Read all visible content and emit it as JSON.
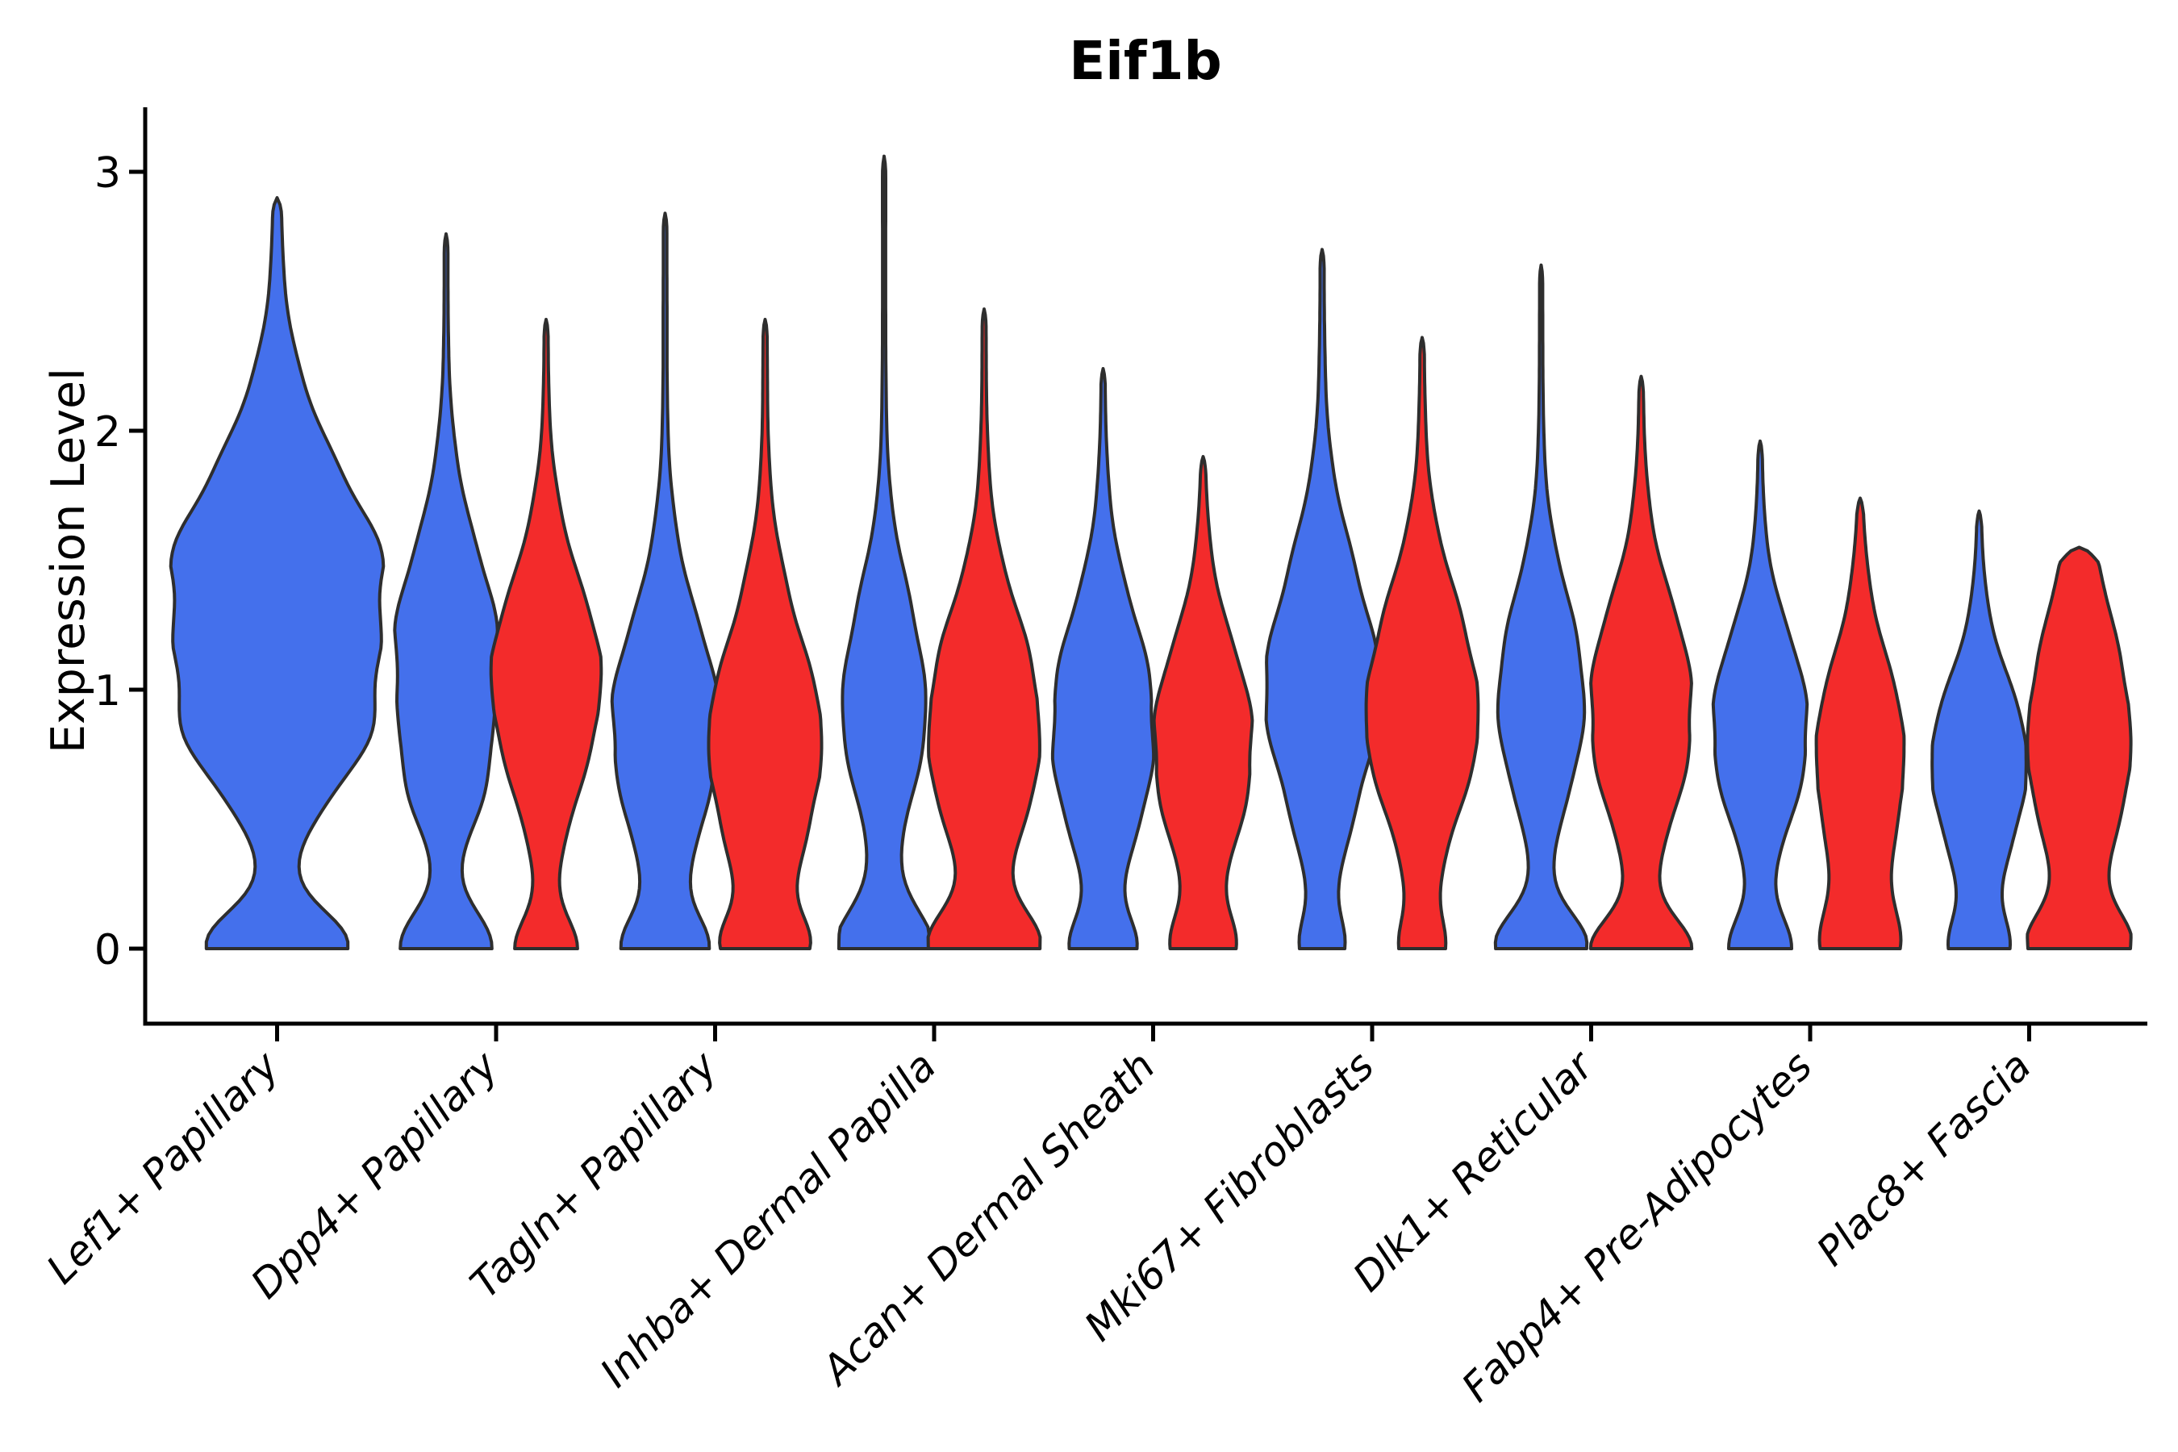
{
  "figure": {
    "background": "#FFFFFF"
  },
  "chart_data": {
    "type": "violin",
    "title": "Eif1b",
    "ylabel": "Expression Level",
    "xlabel": "",
    "yticks": [
      0,
      1,
      2,
      3
    ],
    "ylim": [
      -0.29,
      3.24
    ],
    "grid": false,
    "legend": "none",
    "colors": {
      "blue": "#4470EC",
      "red": "#F32B2B",
      "outline": "#2E2E2E",
      "axis": "#000000",
      "text": "#000000"
    },
    "categories": [
      "Lef1+ Papillary",
      "Dpp4+ Papillary",
      "Tagln+ Papillary",
      "Inhba+ Dermal Papilla",
      "Acan+ Dermal Sheath",
      "Mki67+ Fibroblasts",
      "Dlk1+ Reticular",
      "Fabp4+ Pre-Adipocytes",
      "Plac8+ Fascia"
    ],
    "violins": [
      {
        "category": "Lef1+ Papillary",
        "slug": "lef1-papillary",
        "series": [
          {
            "group": "blue",
            "max": 2.9,
            "halfwidth": 130,
            "offset": 0,
            "components": [
              [
                0,
                0.14,
                0.62
              ],
              [
                0.75,
                0.2,
                0.3
              ],
              [
                1.35,
                0.48,
                1.0
              ]
            ]
          }
        ]
      },
      {
        "category": "Dpp4+ Papillary",
        "slug": "dpp4-papillary",
        "series": [
          {
            "group": "blue",
            "max": 2.76,
            "halfwidth": 62,
            "offset": -62,
            "components": [
              [
                0,
                0.14,
                0.85
              ],
              [
                0.6,
                0.18,
                0.25
              ],
              [
                1.12,
                0.42,
                1.0
              ]
            ]
          },
          {
            "group": "red",
            "max": 2.43,
            "halfwidth": 66,
            "offset": 62,
            "components": [
              [
                0,
                0.12,
                0.52
              ],
              [
                1.02,
                0.4,
                1.0
              ]
            ]
          }
        ]
      },
      {
        "category": "Tagln+ Papillary",
        "slug": "tagln-papillary",
        "series": [
          {
            "group": "blue",
            "max": 2.84,
            "halfwidth": 64,
            "offset": -62,
            "components": [
              [
                0,
                0.12,
                0.72
              ],
              [
                0.85,
                0.42,
                1.0
              ]
            ]
          },
          {
            "group": "red",
            "max": 2.43,
            "halfwidth": 68,
            "offset": 62,
            "components": [
              [
                0,
                0.12,
                0.56
              ],
              [
                0.78,
                0.44,
                1.0
              ]
            ]
          }
        ]
      },
      {
        "category": "Inhba+ Dermal Papilla",
        "slug": "inhba-dermal-papilla",
        "series": [
          {
            "group": "blue",
            "max": 3.06,
            "halfwidth": 55,
            "offset": -62,
            "components": [
              [
                0,
                0.15,
                1.0
              ],
              [
                0.95,
                0.4,
                0.9
              ]
            ]
          },
          {
            "group": "red",
            "max": 2.47,
            "halfwidth": 68,
            "offset": 62,
            "components": [
              [
                0,
                0.14,
                0.85
              ],
              [
                0.85,
                0.42,
                1.0
              ]
            ]
          }
        ]
      },
      {
        "category": "Acan+ Dermal Sheath",
        "slug": "acan-dermal-sheath",
        "series": [
          {
            "group": "blue",
            "max": 2.24,
            "halfwidth": 62,
            "offset": -62,
            "components": [
              [
                0,
                0.12,
                0.5
              ],
              [
                0.85,
                0.42,
                1.0
              ]
            ]
          },
          {
            "group": "red",
            "max": 1.9,
            "halfwidth": 60,
            "offset": 62,
            "components": [
              [
                0,
                0.12,
                0.55
              ],
              [
                0.78,
                0.38,
                1.0
              ]
            ]
          }
        ]
      },
      {
        "category": "Mki67+ Fibroblasts",
        "slug": "mki67-fibroblasts",
        "series": [
          {
            "group": "blue",
            "max": 2.7,
            "halfwidth": 68,
            "offset": -62,
            "components": [
              [
                0,
                0.11,
                0.3
              ],
              [
                1.0,
                0.45,
                1.0
              ]
            ]
          },
          {
            "group": "red",
            "max": 2.36,
            "halfwidth": 68,
            "offset": 62,
            "components": [
              [
                0,
                0.11,
                0.3
              ],
              [
                0.92,
                0.42,
                1.0
              ]
            ]
          }
        ]
      },
      {
        "category": "Dlk1+ Reticular",
        "slug": "dlk1-reticular",
        "series": [
          {
            "group": "blue",
            "max": 2.64,
            "halfwidth": 56,
            "offset": -62,
            "components": [
              [
                0,
                0.13,
                0.95
              ],
              [
                0.97,
                0.38,
                0.92
              ]
            ]
          },
          {
            "group": "red",
            "max": 2.21,
            "halfwidth": 62,
            "offset": 62,
            "components": [
              [
                0,
                0.12,
                0.9
              ],
              [
                0.92,
                0.4,
                1.0
              ]
            ]
          }
        ]
      },
      {
        "category": "Fabp4+ Pre-Adipocytes",
        "slug": "fabp4-pre-adipocytes",
        "series": [
          {
            "group": "blue",
            "max": 1.96,
            "halfwidth": 58,
            "offset": -62,
            "components": [
              [
                0,
                0.12,
                0.6
              ],
              [
                0.85,
                0.35,
                1.0
              ]
            ]
          },
          {
            "group": "red",
            "max": 1.74,
            "halfwidth": 54,
            "offset": 62,
            "components": [
              [
                0,
                0.16,
                0.72
              ],
              [
                0.72,
                0.38,
                1.0
              ]
            ]
          }
        ]
      },
      {
        "category": "Plac8+ Fascia",
        "slug": "plac8-fascia",
        "series": [
          {
            "group": "blue",
            "max": 1.69,
            "halfwidth": 58,
            "offset": -62,
            "components": [
              [
                0,
                0.12,
                0.52
              ],
              [
                0.7,
                0.33,
                1.0
              ]
            ]
          },
          {
            "group": "red",
            "max": 1.55,
            "halfwidth": 62,
            "offset": 62,
            "components": [
              [
                0,
                0.13,
                0.78
              ],
              [
                0.82,
                0.46,
                1.0
              ]
            ]
          }
        ]
      }
    ]
  }
}
